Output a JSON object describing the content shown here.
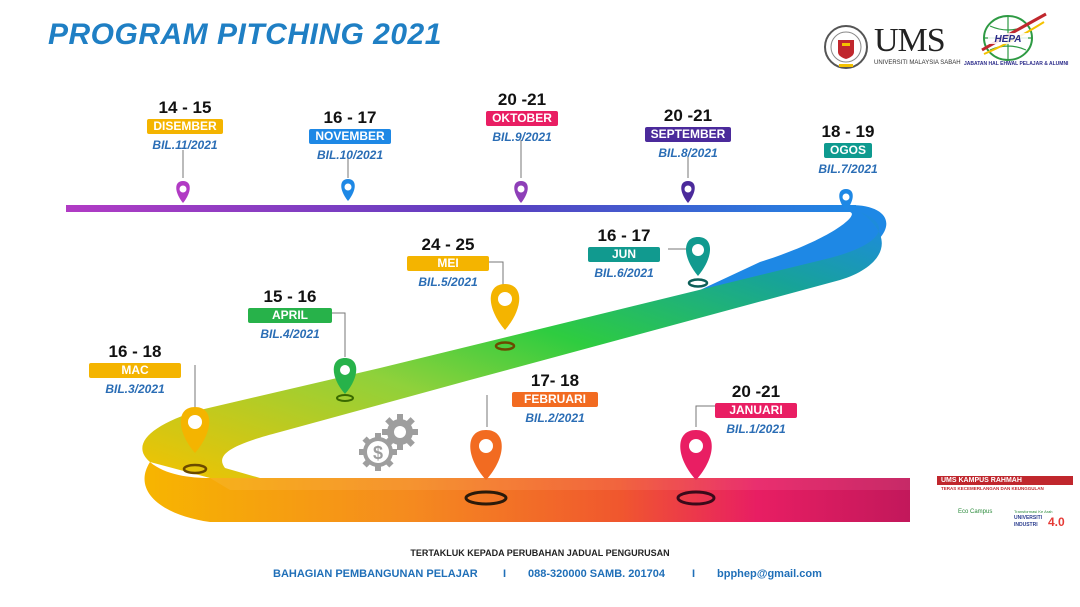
{
  "title": "PROGRAM PITCHING 2021",
  "logos": {
    "ums": "UMS",
    "ums_sub": "UNIVERSITI MALAYSIA SABAH",
    "hepa": "HEPA",
    "hepa_sub": "JABATAN HAL EHWAL PELAJAR & ALUMNI",
    "kampus_title": "UMS KAMPUS RAHMAH",
    "kampus_sub": "TERAS KECEMERLANGAN DAN KEUNGGULAN",
    "eco": "Eco Campus",
    "ui4_top": "Transformasi Ke Arah",
    "ui4_mid": "UNIVERSITI INDUSTRI",
    "ui4_num": "4.0"
  },
  "milestones": [
    {
      "dates": "20 -21",
      "month": "JANUARI",
      "bil": "BIL.1/2021",
      "color": "#e91e63"
    },
    {
      "dates": "17- 18",
      "month": "FEBRUARI",
      "bil": "BIL.2/2021",
      "color": "#f26b21"
    },
    {
      "dates": "16 - 18",
      "month": "MAC",
      "bil": "BIL.3/2021",
      "color": "#f4b400"
    },
    {
      "dates": "15 - 16",
      "month": "APRIL",
      "bil": "BIL.4/2021",
      "color": "#27b24a"
    },
    {
      "dates": "24 - 25",
      "month": "MEI",
      "bil": "BIL.5/2021",
      "color": "#f4b400"
    },
    {
      "dates": "16 - 17",
      "month": "JUN",
      "bil": "BIL.6/2021",
      "color": "#119a8f"
    },
    {
      "dates": "18 - 19",
      "month": "OGOS",
      "bil": "BIL.7/2021",
      "color": "#0e9a8f"
    },
    {
      "dates": "20 -21",
      "month": "SEPTEMBER",
      "bil": "BIL.8/2021",
      "color": "#4b2a9b"
    },
    {
      "dates": "20 -21",
      "month": "OKTOBER",
      "bil": "BIL.9/2021",
      "color": "#e91e63"
    },
    {
      "dates": "16 - 17",
      "month": "NOVEMBER",
      "bil": "BIL.10/2021",
      "color": "#1e88e5"
    },
    {
      "dates": "14 - 15",
      "month": "DISEMBER",
      "bil": "BIL.11/2021",
      "color": "#f4b400"
    }
  ],
  "footer": {
    "note": "TERTAKLUK KEPADA PERUBAHAN JADUAL PENGURUSAN",
    "dept": "BAHAGIAN PEMBANGUNAN PELAJAR",
    "sep": "I",
    "phone": "088-320000 SAMB.  201704",
    "email": "bpphep@gmail.com"
  }
}
